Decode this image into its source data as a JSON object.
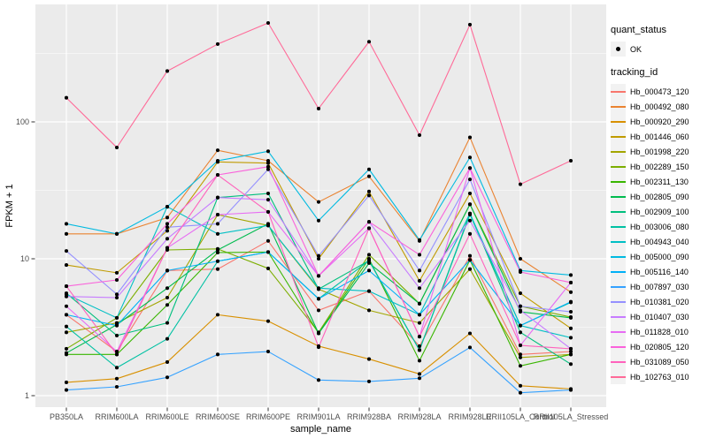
{
  "legend": {
    "quant_status": {
      "title": "quant_status",
      "items": [
        {
          "label": "OK",
          "marker": "black-point"
        }
      ]
    },
    "tracking_id": {
      "title": "tracking_id"
    }
  },
  "axes": {
    "x": {
      "title": "sample_name"
    },
    "y": {
      "title": "FPKM + 1"
    }
  },
  "chart_data": {
    "type": "line",
    "x_type": "categorical",
    "title": "",
    "xlabel": "sample_name",
    "ylabel": "FPKM + 1",
    "y_scale": "log10",
    "y_ticks": [
      1,
      10,
      100
    ],
    "y_minor_ticks": [
      3.1623,
      31.623,
      316.23
    ],
    "ylim": [
      0.82,
      660
    ],
    "legend_position": "right",
    "grid": "white major and minor gridlines on gray panel",
    "panel_bg": "#EBEBEB",
    "marker": "black point (quant_status OK)",
    "tick_label_color": "#4D4D4D",
    "categories": [
      "PB350LA",
      "RRIM600LA",
      "RRIM600LE",
      "RRIM600SE",
      "RRIM600PE",
      "RRIM901LA",
      "RRIM928BA",
      "RRIM928LA",
      "RRIM928LE",
      "RRII105LA_Control",
      "RRII105LA_Stressed"
    ],
    "series": [
      {
        "name": "Hb_000473_120",
        "color": "#F8766D",
        "values": [
          3.9,
          2.1,
          8.2,
          8.4,
          13.5,
          4.2,
          5.8,
          2.3,
          10.5,
          2.0,
          2.1
        ]
      },
      {
        "name": "Hb_000492_080",
        "color": "#EA8331",
        "values": [
          15.2,
          15.2,
          20,
          62,
          52,
          26,
          40,
          13.5,
          77,
          10,
          5.7
        ]
      },
      {
        "name": "Hb_000920_290",
        "color": "#D89000",
        "values": [
          1.25,
          1.33,
          1.76,
          3.9,
          3.5,
          2.3,
          1.85,
          1.44,
          2.85,
          1.18,
          1.12
        ]
      },
      {
        "name": "Hb_001446_060",
        "color": "#C09B00",
        "values": [
          9.0,
          7.9,
          16,
          51,
          50,
          10,
          31,
          6.9,
          30,
          5.6,
          3.1
        ]
      },
      {
        "name": "Hb_001998_220",
        "color": "#A3A500",
        "values": [
          2.9,
          3.4,
          5.2,
          21,
          17.5,
          6.0,
          4.2,
          3.4,
          8.4,
          1.9,
          2.0
        ]
      },
      {
        "name": "Hb_002289_150",
        "color": "#7CAE00",
        "values": [
          2.2,
          3.7,
          11.6,
          11.8,
          8.5,
          2.9,
          10.7,
          4.7,
          25,
          4.5,
          3.75
        ]
      },
      {
        "name": "Hb_002311_130",
        "color": "#39B600",
        "values": [
          2.0,
          2.0,
          4.6,
          11.1,
          11.2,
          2.85,
          10.0,
          1.8,
          9.8,
          1.65,
          2.0
        ]
      },
      {
        "name": "Hb_002805_090",
        "color": "#00BB4E",
        "values": [
          2.05,
          3.3,
          6.1,
          11.6,
          18,
          2.85,
          9.3,
          4.7,
          25,
          4.1,
          3.7
        ]
      },
      {
        "name": "Hb_002909_100",
        "color": "#00BF7D",
        "values": [
          5.6,
          2.75,
          3.4,
          28,
          30,
          6.0,
          9.7,
          2.15,
          21.4,
          2.9,
          1.7
        ]
      },
      {
        "name": "Hb_003006_080",
        "color": "#00C1A3",
        "values": [
          3.2,
          1.6,
          2.6,
          9.6,
          11.2,
          5.1,
          9.7,
          2.15,
          21,
          3.25,
          4.8
        ]
      },
      {
        "name": "Hb_004943_040",
        "color": "#00BFC4",
        "values": [
          5.5,
          3.7,
          24,
          15.2,
          17.5,
          6.1,
          5.8,
          3.9,
          21.4,
          3.25,
          2.65
        ]
      },
      {
        "name": "Hb_005000_090",
        "color": "#00BAE0",
        "values": [
          18,
          15.2,
          24,
          52,
          61,
          19,
          45,
          13.7,
          55,
          8.2,
          7.6
        ]
      },
      {
        "name": "Hb_005116_140",
        "color": "#00B0F6",
        "values": [
          3.9,
          3.25,
          8.2,
          9.6,
          11.2,
          5.1,
          8.2,
          3.9,
          9.8,
          3.25,
          4.85
        ]
      },
      {
        "name": "Hb_007897_030",
        "color": "#35A2FF",
        "values": [
          1.1,
          1.16,
          1.36,
          2.0,
          2.1,
          1.3,
          1.27,
          1.34,
          2.25,
          1.05,
          1.1
        ]
      },
      {
        "name": "Hb_010381_020",
        "color": "#9590FF",
        "values": [
          11.4,
          5.5,
          17,
          18,
          45,
          10.5,
          29,
          8.2,
          38,
          4.5,
          4.1
        ]
      },
      {
        "name": "Hb_010407_030",
        "color": "#C77CFF",
        "values": [
          5.3,
          5.2,
          14,
          28,
          27,
          7.5,
          18.6,
          6.1,
          19,
          4.2,
          2.2
        ]
      },
      {
        "name": "Hb_011828_010",
        "color": "#E76BF3",
        "values": [
          4.5,
          2.1,
          12,
          21,
          22,
          7.5,
          16.7,
          2.7,
          46,
          2.33,
          6.7
        ]
      },
      {
        "name": "Hb_020805_120",
        "color": "#FA62DB",
        "values": [
          6.3,
          7.0,
          18,
          41,
          47,
          7.5,
          18.6,
          10.7,
          46,
          8.0,
          6.7
        ]
      },
      {
        "name": "Hb_031089_050",
        "color": "#FF62BC",
        "values": [
          6.3,
          2.0,
          12,
          41,
          22,
          2.26,
          16.7,
          2.7,
          15.2,
          2.33,
          2.2
        ]
      },
      {
        "name": "Hb_102763_010",
        "color": "#FF6A98",
        "values": [
          150,
          65,
          235,
          370,
          528,
          125,
          385,
          80,
          513,
          35,
          52
        ]
      }
    ]
  }
}
